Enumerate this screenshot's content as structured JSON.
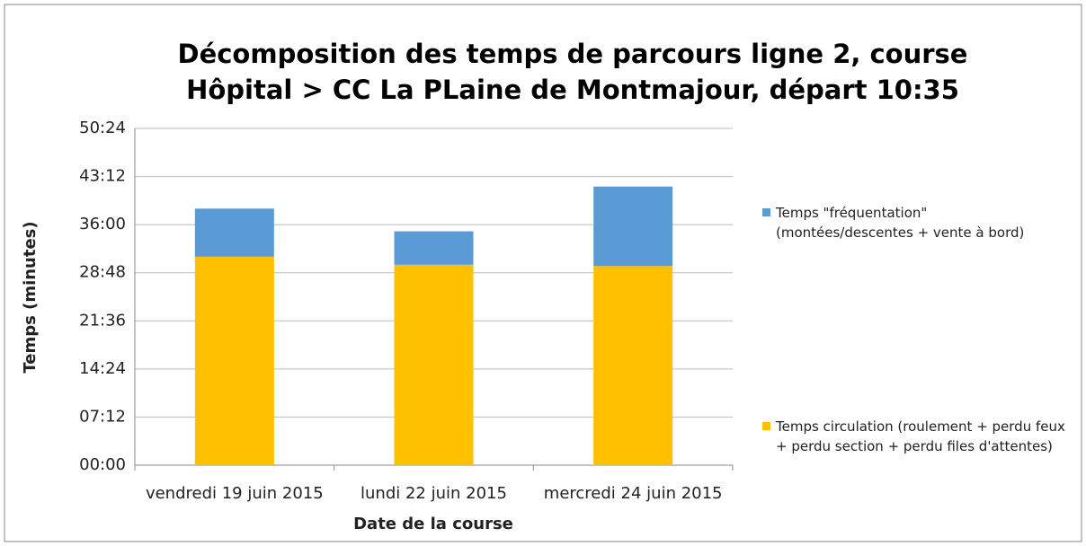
{
  "chart_data": {
    "type": "bar",
    "stacked": true,
    "title": "Décomposition des temps de parcours ligne 2, course Hôpital > CC La PLaine de Montmajour, départ 10:35",
    "x_label": "Date de la course",
    "y_label": "Temps (minutes)",
    "categories": [
      "vendredi 19 juin 2015",
      "lundi 22 juin 2015",
      "mercredi 24 juin 2015"
    ],
    "series": [
      {
        "name": "Temps circulation (roulement + perdu feux + perdu section +  perdu files d'attentes)",
        "color": "#ffc000",
        "values": [
          31.2,
          30.0,
          29.8
        ]
      },
      {
        "name": "Temps \"fréquentation\" (montées/descentes + vente à bord)",
        "color": "#5b9bd5",
        "values": [
          7.2,
          5.0,
          11.9
        ]
      }
    ],
    "ylim": [
      0,
      50.4
    ],
    "yticks": [
      {
        "value": 0,
        "label": "00:00"
      },
      {
        "value": 7.2,
        "label": "07:12"
      },
      {
        "value": 14.4,
        "label": "14:24"
      },
      {
        "value": 21.6,
        "label": "21:36"
      },
      {
        "value": 28.8,
        "label": "28:48"
      },
      {
        "value": 36,
        "label": "36:00"
      },
      {
        "value": 43.2,
        "label": "43:12"
      },
      {
        "value": 50.4,
        "label": "50:24"
      }
    ],
    "grid": true,
    "legend": "right"
  }
}
